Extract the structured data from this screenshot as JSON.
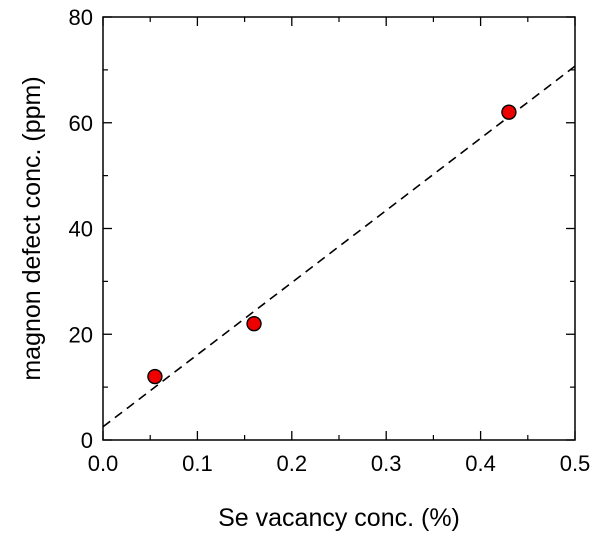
{
  "chart_data": {
    "type": "scatter",
    "title": "",
    "xlabel": "Se vacancy conc. (%)",
    "ylabel": "magnon defect conc. (ppm)",
    "xlim": [
      0.0,
      0.5
    ],
    "ylim": [
      0,
      80
    ],
    "x_ticks": [
      0.0,
      0.1,
      0.2,
      0.3,
      0.4,
      0.5
    ],
    "x_tick_labels": [
      "0.0",
      "0.1",
      "0.2",
      "0.3",
      "0.4",
      "0.5"
    ],
    "y_ticks": [
      0,
      20,
      40,
      60,
      80
    ],
    "y_tick_labels": [
      "0",
      "20",
      "40",
      "60",
      "80"
    ],
    "grid": false,
    "legend": "none",
    "series": [
      {
        "type": "scatter",
        "marker": "circle",
        "color": "#ee0000",
        "edge_color": "#000000",
        "x": [
          0.055,
          0.16,
          0.43
        ],
        "y": [
          12,
          22,
          62
        ]
      },
      {
        "type": "line",
        "style": "dashed",
        "color": "#000000",
        "x": [
          0.0,
          0.5
        ],
        "y": [
          2.5,
          70.7
        ]
      }
    ]
  }
}
